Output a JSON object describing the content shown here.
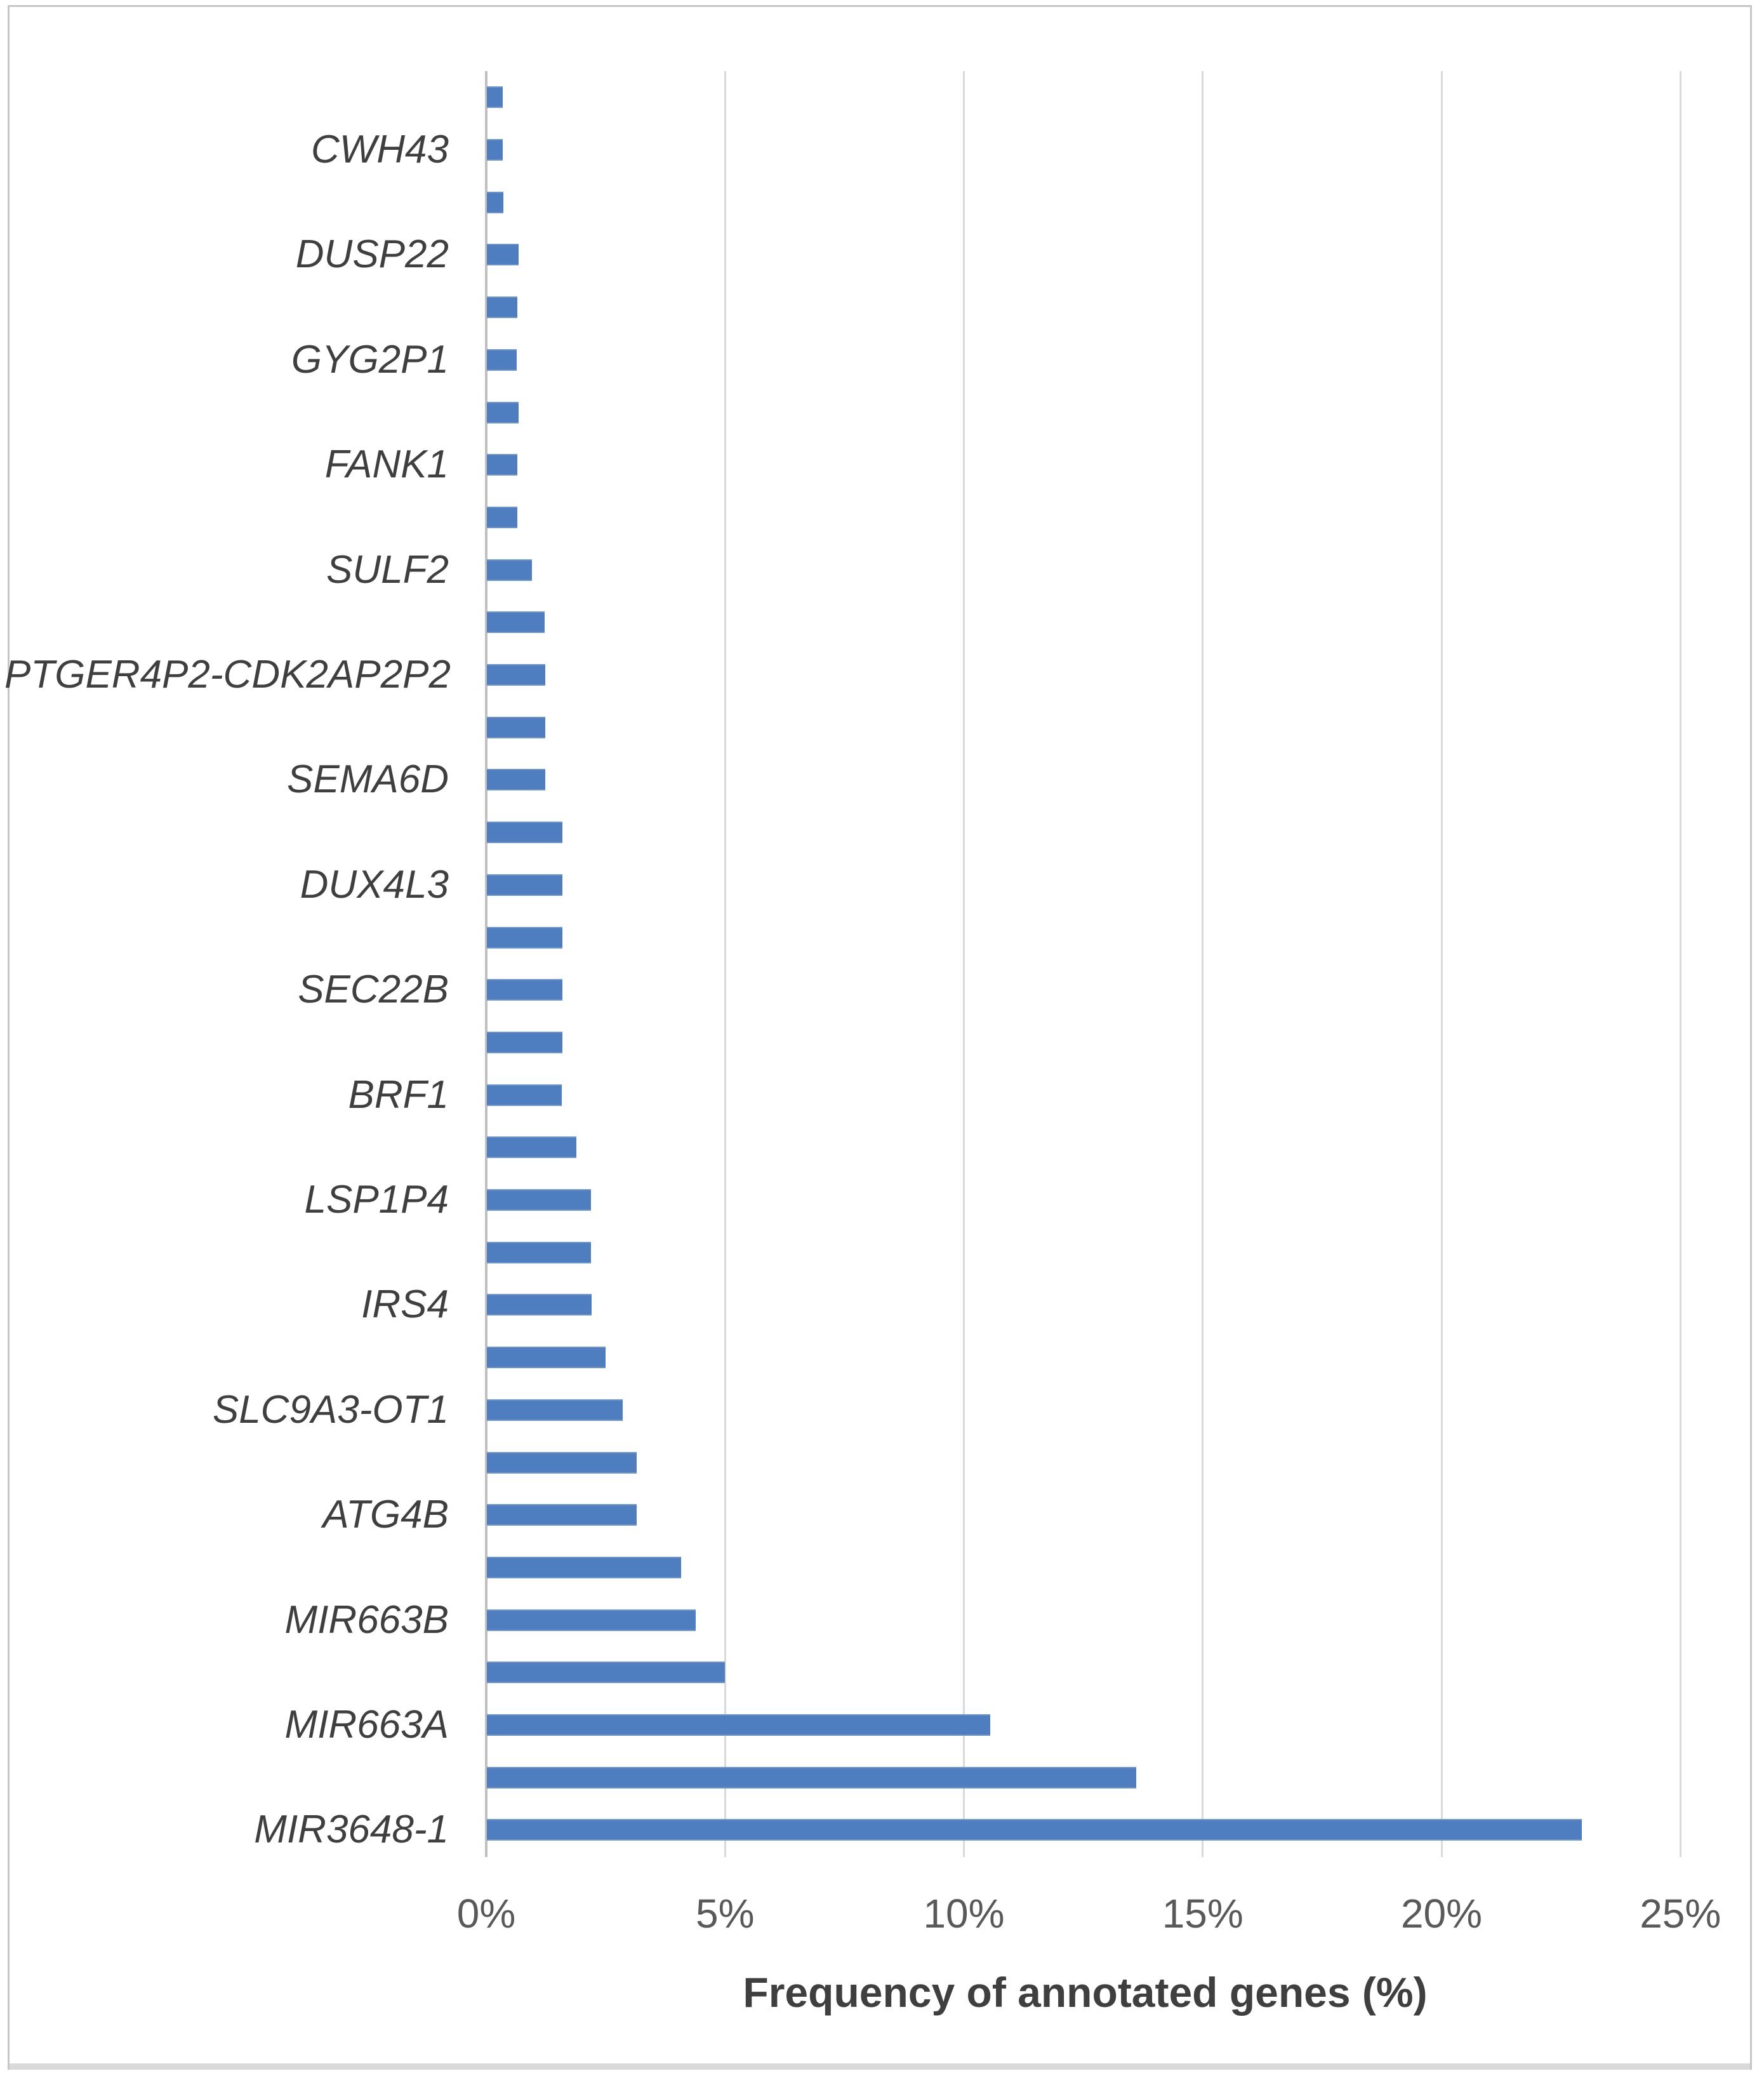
{
  "figure": {
    "background": "#ffffff",
    "border_color": "#c6c6c6"
  },
  "chart_data": {
    "type": "bar",
    "orientation": "horizontal",
    "title": "",
    "xlabel": "Frequency of annotated genes (%)",
    "ylabel": "",
    "x_ticks": [
      "0%",
      "5%",
      "10%",
      "15%",
      "20%",
      "25%"
    ],
    "x_tick_values": [
      0,
      5,
      10,
      15,
      20,
      25
    ],
    "xlim": [
      0,
      25
    ],
    "grid": "vertical",
    "legend": "none",
    "bar_color": "#4e7ebf",
    "gridline_color": "#d9d9d9",
    "axis_line_color": "#bfbfbf",
    "tick_label_color": "#595959",
    "category_label_color": "#3f3f3f",
    "categories": [
      "",
      "CWH43",
      "",
      "DUSP22",
      "",
      "GYG2P1",
      "",
      "FANK1",
      "",
      "SULF2",
      "",
      "PTGER4P2-CDK2AP2P2",
      "",
      "SEMA6D",
      "",
      "DUX4L3",
      "",
      "SEC22B",
      "",
      "BRF1",
      "",
      "LSP1P4",
      "",
      "IRS4",
      "",
      "SLC9A3-OT1",
      "",
      "ATG4B",
      "",
      "MIR663B",
      "",
      "MIR663A",
      "",
      "MIR3648-1"
    ],
    "values": [
      0.33,
      0.33,
      0.34,
      0.66,
      0.64,
      0.62,
      0.66,
      0.64,
      0.64,
      0.95,
      1.21,
      1.22,
      1.22,
      1.22,
      1.58,
      1.58,
      1.58,
      1.58,
      1.58,
      1.57,
      1.88,
      2.18,
      2.18,
      2.19,
      2.49,
      2.84,
      3.13,
      3.13,
      4.06,
      4.37,
      4.99,
      10.54,
      13.6,
      22.93
    ]
  }
}
